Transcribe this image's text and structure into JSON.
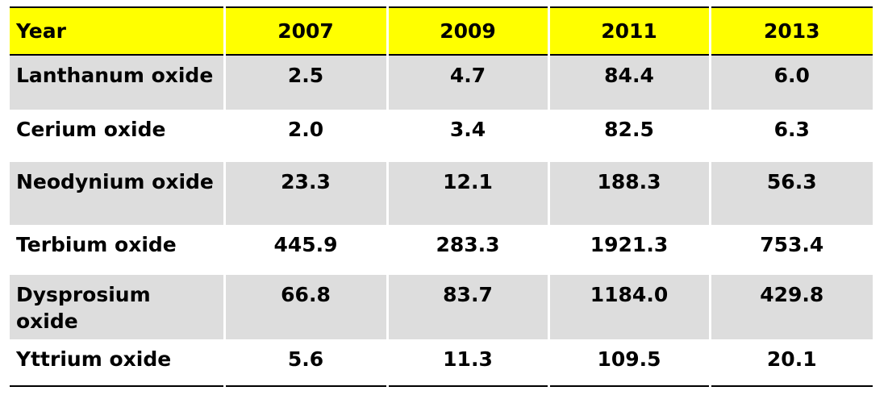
{
  "table": {
    "header": [
      "Year",
      "2007",
      "2009",
      "2011",
      "2013"
    ],
    "rows": [
      [
        "Lanthanum oxide",
        "2.5",
        "4.7",
        "84.4",
        "6.0"
      ],
      [
        "Cerium oxide",
        "2.0",
        "3.4",
        "82.5",
        "6.3"
      ],
      [
        "Neodynium oxide",
        "23.3",
        "12.1",
        "188.3",
        "56.3"
      ],
      [
        "Terbium oxide",
        "445.9",
        "283.3",
        "1921.3",
        "753.4"
      ],
      [
        "Dysprosium oxide",
        "66.8",
        "83.7",
        "1184.0",
        "429.8"
      ],
      [
        "Yttrium oxide",
        "5.6",
        "11.3",
        "109.5",
        "20.1"
      ]
    ]
  }
}
